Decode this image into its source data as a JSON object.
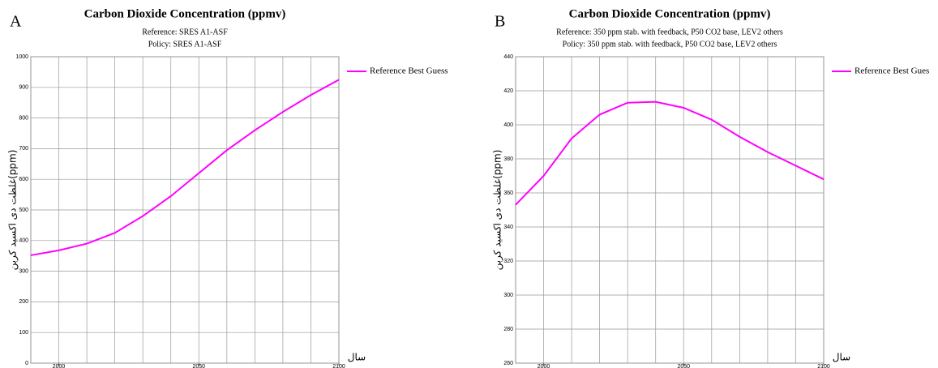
{
  "chart_data": [
    {
      "type": "line",
      "panel": "A",
      "title": "Carbon Dioxide Concentration (ppmv)",
      "subtitles": [
        "Reference: SRES A1-ASF",
        "Policy: SRES A1-ASF"
      ],
      "x_label": "سال",
      "y_label": "غلظت دی اکسید کربن(ppm)",
      "x": [
        1990,
        2000,
        2010,
        2020,
        2030,
        2040,
        2050,
        2060,
        2070,
        2080,
        2090,
        2100
      ],
      "series": [
        {
          "name": "Reference Best Guess",
          "color": "#ff00ff",
          "values": [
            352,
            368,
            390,
            425,
            480,
            545,
            620,
            695,
            760,
            820,
            875,
            925
          ]
        }
      ],
      "xlim": [
        1990,
        2100
      ],
      "xticks": [
        2000,
        2050,
        2100
      ],
      "xgrid": [
        1990,
        2000,
        2010,
        2020,
        2030,
        2040,
        2050,
        2060,
        2070,
        2080,
        2090,
        2100
      ],
      "ylim": [
        0,
        1000
      ],
      "yticks": [
        0,
        100,
        200,
        300,
        400,
        500,
        600,
        700,
        800,
        900,
        1000
      ],
      "grid": true,
      "legend": "right"
    },
    {
      "type": "line",
      "panel": "B",
      "title": "Carbon Dioxide Concentration (ppmv)",
      "subtitles": [
        "Reference: 350 ppm stab. with feedback, P50 CO2 base, LEV2 others",
        "Policy: 350 ppm stab. with feedback, P50 CO2 base, LEV2 others"
      ],
      "x_label": "سال",
      "y_label": "غلظت دی اکسید کربن(ppm)",
      "x": [
        1990,
        2000,
        2010,
        2020,
        2030,
        2040,
        2050,
        2060,
        2070,
        2080,
        2090,
        2100
      ],
      "series": [
        {
          "name": "Reference Best Gues",
          "color": "#ff00ff",
          "values": [
            353,
            370,
            392,
            406,
            413,
            413.5,
            410,
            403,
            393,
            384,
            376,
            368
          ]
        }
      ],
      "xlim": [
        1990,
        2100
      ],
      "xticks": [
        2000,
        2050,
        2100
      ],
      "xgrid": [
        1990,
        2000,
        2010,
        2020,
        2030,
        2040,
        2050,
        2060,
        2070,
        2080,
        2090,
        2100
      ],
      "ylim": [
        260,
        440
      ],
      "yticks": [
        260,
        280,
        300,
        320,
        340,
        360,
        380,
        400,
        420,
        440
      ],
      "grid": true,
      "legend": "right"
    }
  ]
}
